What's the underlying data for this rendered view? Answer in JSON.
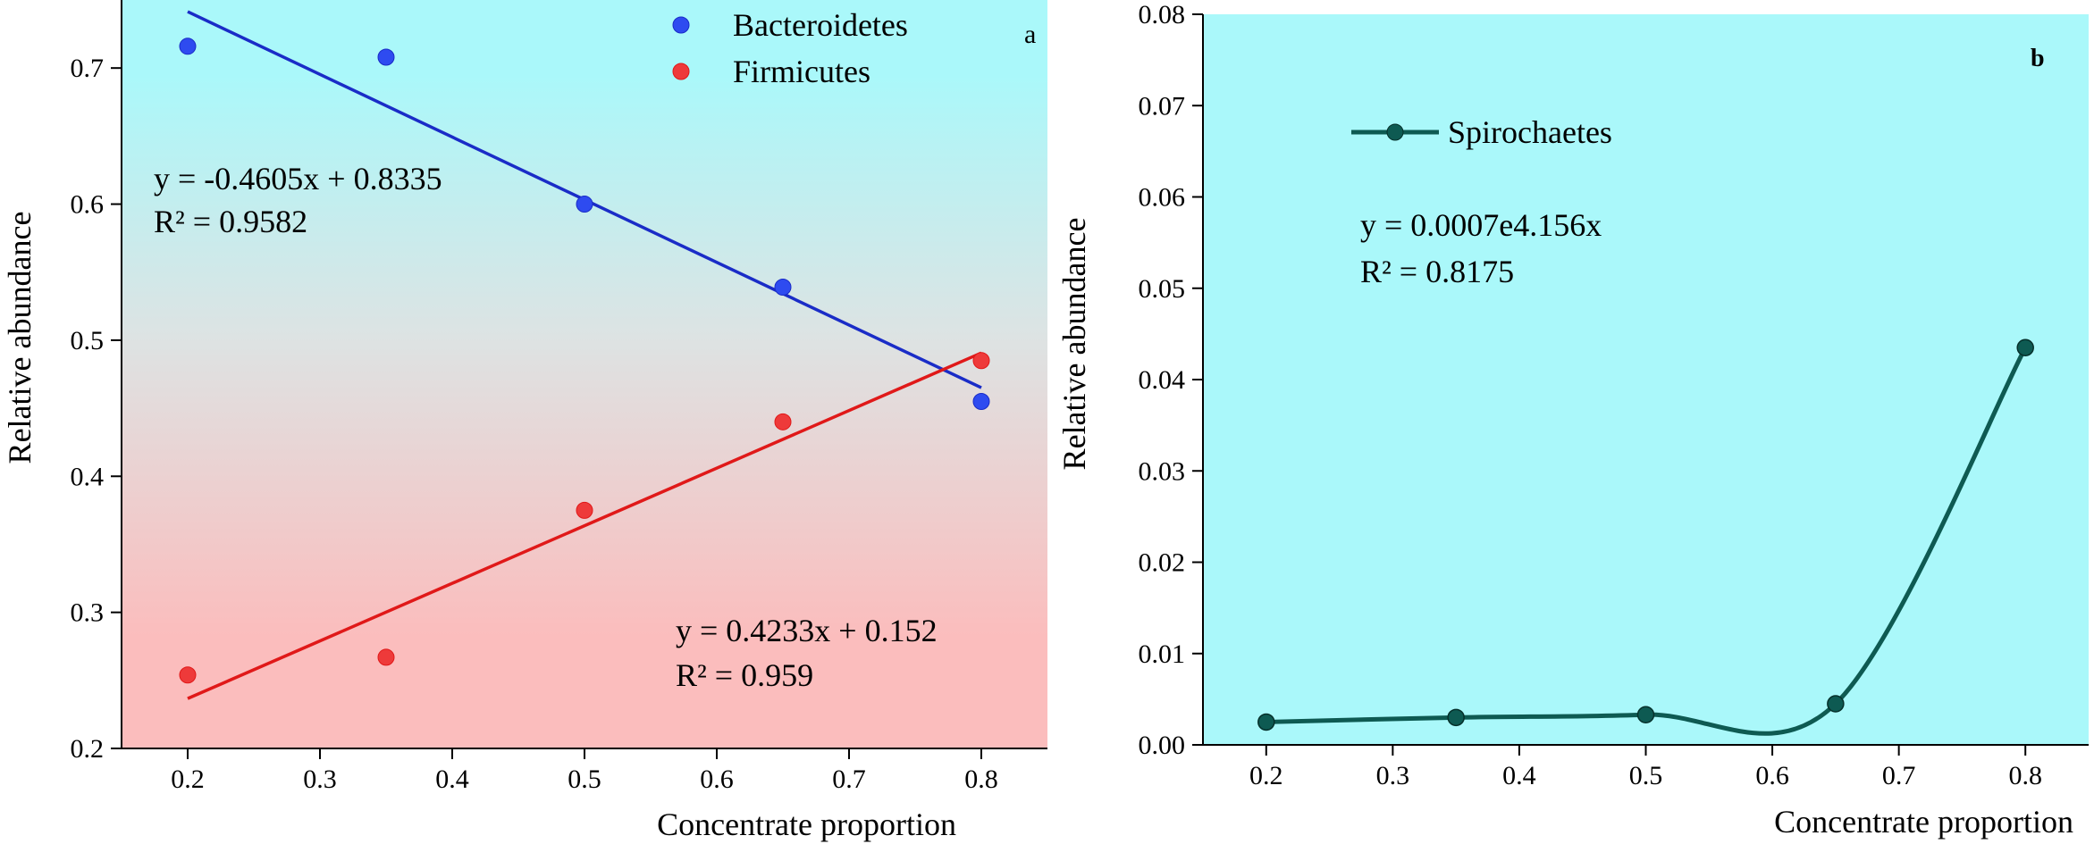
{
  "chart_data": [
    {
      "type": "scatter",
      "panel": "a",
      "xlabel": "Concentrate proportion",
      "ylabel": "Relative abundance",
      "xlim": [
        0.15,
        0.85
      ],
      "ylim": [
        0.2,
        0.75
      ],
      "x_ticks": [
        0.2,
        0.3,
        0.4,
        0.5,
        0.6,
        0.7,
        0.8
      ],
      "y_ticks": [
        0.2,
        0.3,
        0.4,
        0.5,
        0.6,
        0.7
      ],
      "x_tick_labels": [
        "0.2",
        "0.3",
        "0.4",
        "0.5",
        "0.6",
        "0.7",
        "0.8"
      ],
      "y_tick_labels": [
        "0.2",
        "0.3",
        "0.4",
        "0.5",
        "0.6",
        "0.7"
      ],
      "background": {
        "top": "#aaf8fa",
        "bottom": "#fbbdbd"
      },
      "legend_position": "top-center",
      "series": [
        {
          "name": "Bacteroidetes",
          "color": "#1a2cc7",
          "marker": "#2e4bf0",
          "x": [
            0.2,
            0.35,
            0.5,
            0.65,
            0.8
          ],
          "values": [
            0.716,
            0.708,
            0.6,
            0.539,
            0.455
          ],
          "fit": {
            "slope": -0.4605,
            "intercept": 0.8335
          },
          "equation": "y = -0.4605x + 0.8335",
          "r2": "R² = 0.9582"
        },
        {
          "name": "Firmicutes",
          "color": "#e01919",
          "marker": "#ee3a3a",
          "x": [
            0.2,
            0.35,
            0.5,
            0.65,
            0.8
          ],
          "values": [
            0.254,
            0.267,
            0.375,
            0.44,
            0.485
          ],
          "fit": {
            "slope": 0.4233,
            "intercept": 0.152
          },
          "equation": "y = 0.4233x + 0.152",
          "r2": "R² = 0.959"
        }
      ]
    },
    {
      "type": "line",
      "panel": "b",
      "xlabel": "Concentrate proportion",
      "ylabel": "Relative abundance",
      "xlim": [
        0.15,
        0.85
      ],
      "ylim": [
        0,
        0.08
      ],
      "x_ticks": [
        0.2,
        0.3,
        0.4,
        0.5,
        0.6,
        0.7,
        0.8
      ],
      "y_ticks": [
        0,
        0.01,
        0.02,
        0.03,
        0.04,
        0.05,
        0.06,
        0.07,
        0.08
      ],
      "x_tick_labels": [
        "0.2",
        "0.3",
        "0.4",
        "0.5",
        "0.6",
        "0.7",
        "0.8"
      ],
      "y_tick_labels": [
        "0.00",
        "0.01",
        "0.02",
        "0.03",
        "0.04",
        "0.05",
        "0.06",
        "0.07",
        "0.08"
      ],
      "background": {
        "fill": "#aaf8fa"
      },
      "legend_position": "top-left",
      "series": [
        {
          "name": "Spirochaetes",
          "color": "#0e5a52",
          "x": [
            0.2,
            0.35,
            0.5,
            0.65,
            0.8
          ],
          "values": [
            0.0025,
            0.003,
            0.0033,
            0.0045,
            0.0435
          ],
          "equation": "y = 0.0007e4.156x",
          "r2": "R² = 0.8175"
        }
      ]
    }
  ]
}
